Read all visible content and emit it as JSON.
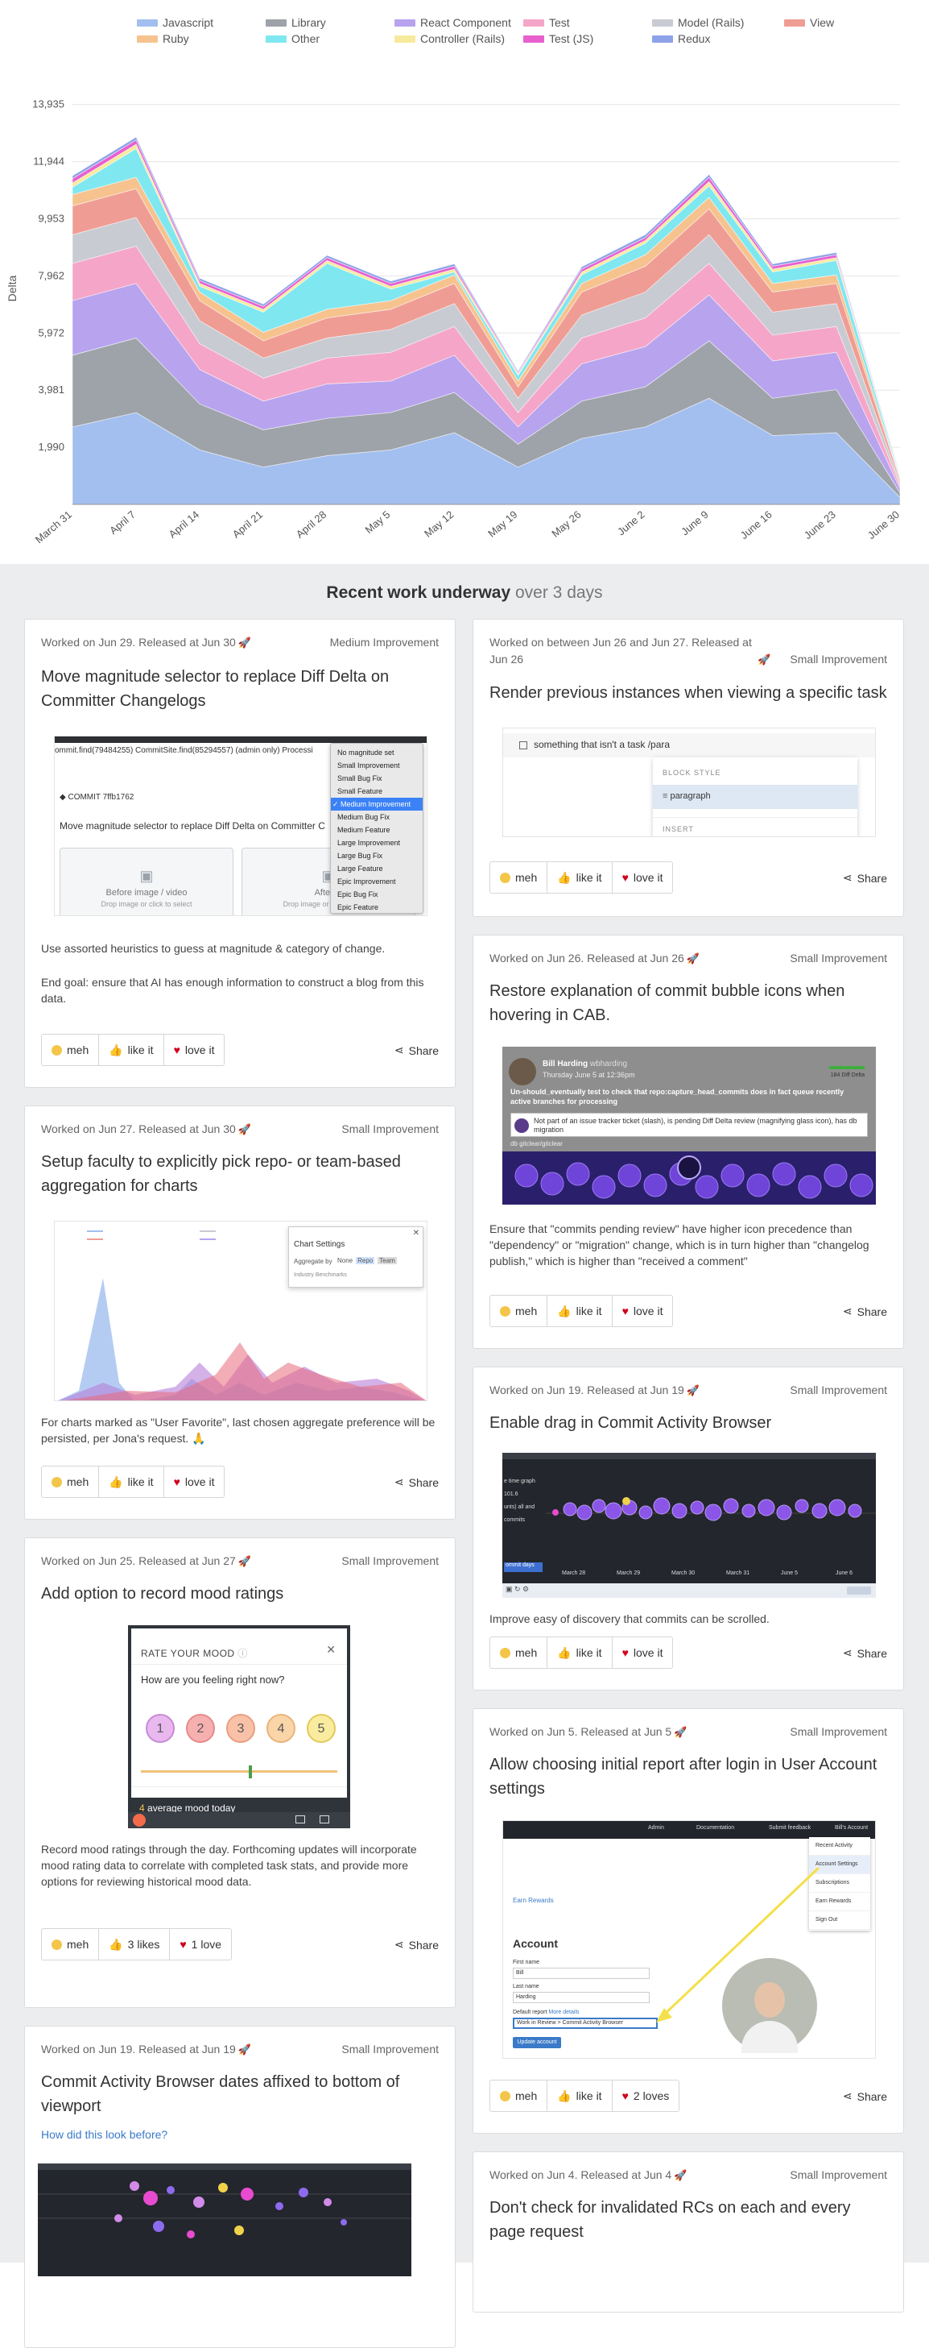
{
  "chart_data": {
    "type": "area",
    "stacked": true,
    "ylabel": "Delta",
    "x": [
      "March 31",
      "April 7",
      "April 14",
      "April 21",
      "April 28",
      "May 5",
      "May 12",
      "May 19",
      "May 26",
      "June 2",
      "June 9",
      "June 16",
      "June 23",
      "June 30"
    ],
    "yticks": [
      "1,990",
      "3,981",
      "5,972",
      "7,962",
      "9,953",
      "11,944",
      "13,935"
    ],
    "ylim": [
      0,
      13935
    ],
    "legend_position": "top",
    "grid": true,
    "series": [
      {
        "name": "Javascript",
        "color": "#a3bfef",
        "values": [
          2700,
          3200,
          1900,
          1300,
          1700,
          1900,
          2500,
          1300,
          2300,
          2700,
          3700,
          2400,
          2500,
          250
        ]
      },
      {
        "name": "Library",
        "color": "#9ea3a9",
        "values": [
          2500,
          2600,
          1600,
          1300,
          1300,
          1300,
          1400,
          800,
          1300,
          1400,
          2000,
          1300,
          1500,
          150
        ]
      },
      {
        "name": "React Component",
        "color": "#b7a3ee",
        "values": [
          1900,
          1900,
          1200,
          1000,
          1200,
          1100,
          1300,
          600,
          1300,
          1400,
          1600,
          1300,
          1300,
          150
        ]
      },
      {
        "name": "Test",
        "color": "#f5a6c8",
        "values": [
          1300,
          1300,
          900,
          800,
          900,
          1000,
          1000,
          500,
          900,
          1000,
          1100,
          900,
          900,
          100
        ]
      },
      {
        "name": "Model (Rails)",
        "color": "#c8cbd2",
        "values": [
          1000,
          1000,
          800,
          700,
          700,
          800,
          800,
          500,
          800,
          900,
          1000,
          800,
          800,
          100
        ]
      },
      {
        "name": "View",
        "color": "#ef9d94",
        "values": [
          1000,
          1000,
          700,
          600,
          700,
          700,
          700,
          400,
          800,
          900,
          900,
          700,
          700,
          100
        ]
      },
      {
        "name": "Ruby",
        "color": "#f6c38f",
        "values": [
          400,
          400,
          300,
          300,
          300,
          300,
          300,
          200,
          300,
          400,
          400,
          300,
          300,
          50
        ]
      },
      {
        "name": "Other",
        "color": "#7fe7f0",
        "values": [
          250,
          1000,
          200,
          700,
          1600,
          400,
          100,
          200,
          300,
          400,
          400,
          400,
          500,
          50
        ]
      },
      {
        "name": "Controller (Rails)",
        "color": "#f6ea9c",
        "values": [
          150,
          150,
          100,
          100,
          100,
          100,
          100,
          50,
          100,
          100,
          150,
          100,
          100,
          20
        ]
      },
      {
        "name": "Test (JS)",
        "color": "#e85fce",
        "values": [
          150,
          150,
          100,
          100,
          100,
          100,
          100,
          50,
          100,
          100,
          150,
          100,
          100,
          20
        ]
      },
      {
        "name": "Redux",
        "color": "#8da2e8",
        "values": [
          100,
          100,
          80,
          80,
          80,
          80,
          80,
          50,
          80,
          100,
          100,
          80,
          80,
          20
        ]
      }
    ]
  },
  "section": {
    "title_bold": "Recent work underway",
    "title_muted": " over 3 days"
  },
  "reaction_labels": {
    "meh": "meh",
    "like": "like it",
    "love": "love it",
    "share": "Share"
  },
  "cards": [
    {
      "meta": "Worked on Jun 29. Released at Jun 30",
      "kind": "Medium Improvement",
      "title": "Move magnitude selector to replace Diff Delta on Committer Changelogs",
      "desc": [
        "Use assorted heuristics to guess at magnitude & category of change.",
        "End goal: ensure that AI has enough information to construct a blog from this data."
      ],
      "shot": {
        "top_line": "ommit.find(79484255) CommitSite.find(85294557) (admin only) Processi",
        "commit_label": "COMMIT 7ffb1762",
        "commit_title": "Move magnitude selector to replace Diff Delta on Committer C",
        "drop1_title": "Before image / video",
        "drop1_sub": "Drop image or click to select",
        "drop2_title": "After in",
        "drop2_sub": "Drop image or click to select",
        "menu": [
          "No magnitude set",
          "Small Improvement",
          "Small Bug Fix",
          "Small Feature",
          "✓ Medium Improvement",
          "Medium Bug Fix",
          "Medium Feature",
          "Large Improvement",
          "Large Bug Fix",
          "Large Feature",
          "Epic Improvement",
          "Epic Bug Fix",
          "Epic Feature"
        ]
      }
    },
    {
      "meta": "Worked on Jun 27. Released at Jun 30",
      "kind": "Small Improvement",
      "title": "Setup faculty to explicitly pick repo- or team-based aggregation for charts",
      "desc": [
        "For charts marked as \"User Favorite\", last chosen aggregate preference will be persisted, per Jona's request. 🙏"
      ],
      "shot": {
        "panel_title": "Chart Settings",
        "row1": "Aggregate by",
        "opt_none": "None",
        "opt_repo": "Repo",
        "opt_team": "Team",
        "row2": "Industry Benchmarks"
      }
    },
    {
      "meta": "Worked on Jun 25. Released at Jun 27",
      "kind": "Small Improvement",
      "title": "Add option to record mood ratings",
      "desc": [
        "Record mood ratings through the day. Forthcoming updates will incorporate mood rating data to correlate with completed task stats, and provide more options for reviewing historical mood data."
      ],
      "shot": {
        "header": "RATE YOUR MOOD",
        "question": "How are you feeling right now?",
        "moods": [
          "1",
          "2",
          "3",
          "4",
          "5"
        ],
        "avg_value": "4",
        "avg_label": " average mood today"
      },
      "like_label": "3 likes",
      "love_label": "1 love"
    },
    {
      "meta": "Worked on Jun 19. Released at Jun 19",
      "kind": "Small Improvement",
      "title": "Commit Activity Browser dates affixed to bottom of viewport",
      "link": "How did this look before?"
    },
    {
      "meta": "Worked on between Jun 26 and Jun 27. Released at Jun 26",
      "kind": "Small Improvement",
      "title": "Render previous instances when viewing a specific task",
      "shot": {
        "checkbox_text": "something that isn't a task /para",
        "block_style": "BLOCK STYLE",
        "paragraph": "paragraph",
        "insert": "INSERT"
      }
    },
    {
      "meta": "Worked on Jun 26. Released at Jun 26",
      "kind": "Small Improvement",
      "title": "Restore explanation of commit bubble icons when hovering in CAB.",
      "desc": [
        "Ensure that \"commits pending review\" have higher icon precedence than \"dependency\" or \"migration\" change, which is in turn higher than \"changelog publish,\" which is higher than \"received a comment\""
      ],
      "shot": {
        "author": "Bill Harding",
        "handle": "wbharding",
        "date": "Thursday June 5 at 12:36pm",
        "delta": "184 Diff Delta",
        "msg": "Un-should_eventually test to check that repo:capture_head_commits does in fact queue recently active branches for processing",
        "tip": "Not part of an issue tracker ticket (slash), is pending Diff Delta review (magnifying glass icon), has db migration",
        "path": "db gitclear/gitclear"
      }
    },
    {
      "meta": "Worked on Jun 19. Released at Jun 19",
      "kind": "Small Improvement",
      "title": "Enable drag in Commit Activity Browser",
      "desc": [
        "Improve easy of discovery that commits can be scrolled."
      ],
      "shot": {
        "dates": [
          "March 28",
          "March 29",
          "March 30",
          "March 31",
          "June 5",
          "June 6"
        ],
        "side1": "e time graph",
        "side2": "101.6",
        "side3": "unts) all and",
        "side4": "commits",
        "side5": "ommit days"
      }
    },
    {
      "meta": "Worked on Jun 5. Released at Jun 5",
      "kind": "Small Improvement",
      "title": "Allow choosing initial report after login in User Account settings",
      "shot": {
        "nav": [
          "Admin",
          "Documentation",
          "Submit feedback",
          "Bill's Account"
        ],
        "menu": [
          "Recent Activity",
          "Account Settings",
          "Subscriptions",
          "Earn Rewards",
          "Sign Out"
        ],
        "earn": "Earn Rewards",
        "heading": "Account",
        "first_label": "First name",
        "first_val": "Bill",
        "last_label": "Last name",
        "last_val": "Harding",
        "report_label": "Default report",
        "report_link": "More details",
        "select_val": "Work in Review > Commit Activity Browser",
        "update": "Update account"
      },
      "love_label": "2 loves"
    },
    {
      "meta": "Worked on Jun 4. Released at Jun 4",
      "kind": "Small Improvement",
      "title": "Don't check for invalidated RCs on each and every page request"
    }
  ]
}
